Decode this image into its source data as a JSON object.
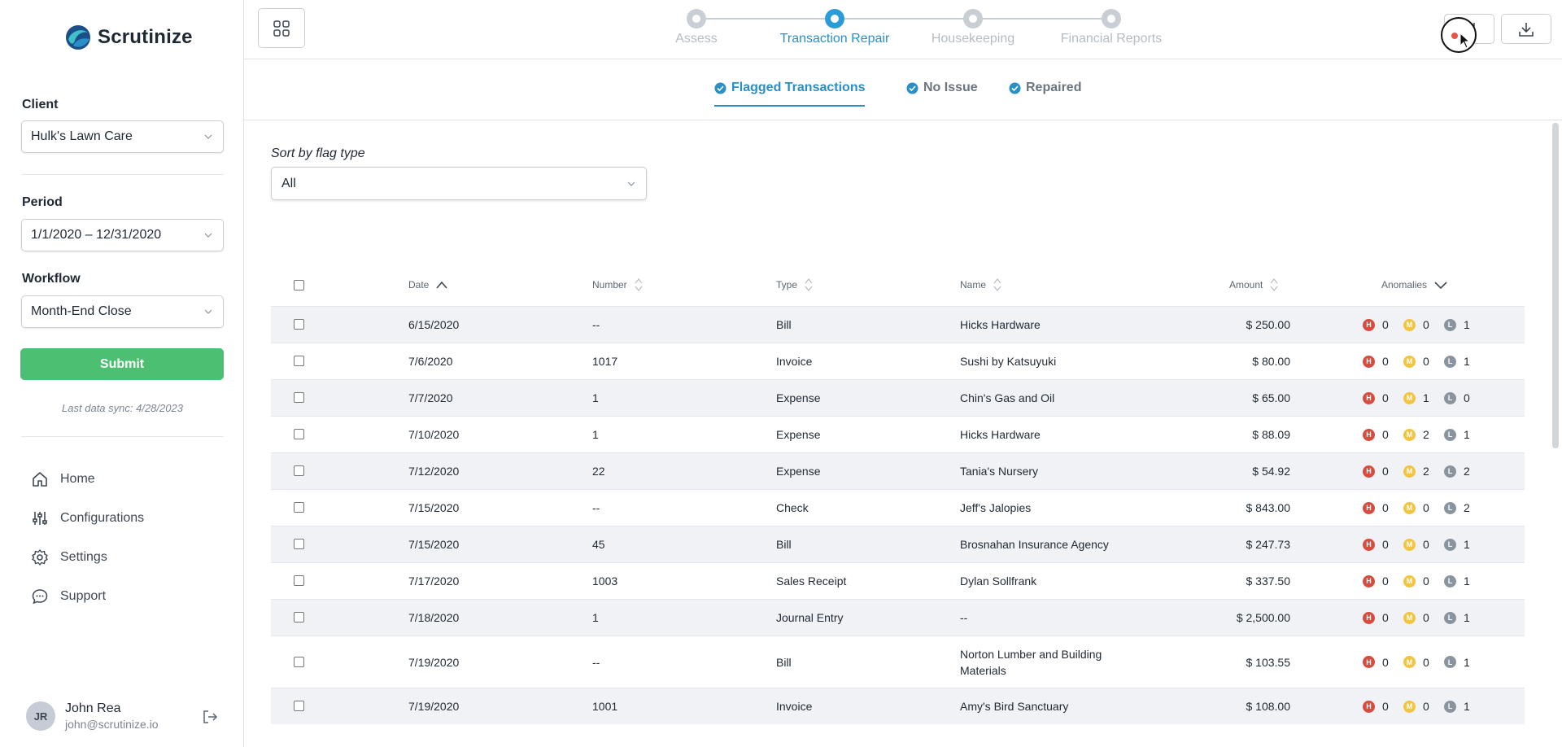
{
  "brand": {
    "name": "Scrutinize"
  },
  "sidebar": {
    "client_label": "Client",
    "client_value": "Hulk's Lawn Care",
    "period_label": "Period",
    "period_value": "1/1/2020 – 12/31/2020",
    "workflow_label": "Workflow",
    "workflow_value": "Month-End Close",
    "submit_label": "Submit",
    "sync_text": "Last data sync: 4/28/2023",
    "nav": [
      {
        "label": "Home",
        "icon": "home-icon"
      },
      {
        "label": "Configurations",
        "icon": "sliders-icon"
      },
      {
        "label": "Settings",
        "icon": "gear-icon"
      },
      {
        "label": "Support",
        "icon": "chat-icon"
      }
    ],
    "user": {
      "initials": "JR",
      "name": "John Rea",
      "email": "john@scrutinize.io"
    }
  },
  "stepper": {
    "steps": [
      {
        "label": "Assess",
        "active": false
      },
      {
        "label": "Transaction Repair",
        "active": true
      },
      {
        "label": "Housekeeping",
        "active": false
      },
      {
        "label": "Financial Reports",
        "active": false
      }
    ]
  },
  "subtabs": [
    {
      "label": "Flagged Transactions",
      "active": true
    },
    {
      "label": "No Issue",
      "active": false
    },
    {
      "label": "Repaired",
      "active": false
    }
  ],
  "filter": {
    "label": "Sort by flag type",
    "value": "All"
  },
  "table": {
    "columns": {
      "date": "Date",
      "number": "Number",
      "type": "Type",
      "name": "Name",
      "amount": "Amount",
      "anomalies": "Anomalies"
    },
    "badges": {
      "high": "H",
      "medium": "M",
      "low": "L"
    },
    "rows": [
      {
        "date": "6/15/2020",
        "number": "--",
        "type": "Bill",
        "name": "Hicks Hardware",
        "amount": "$ 250.00",
        "h": "0",
        "m": "0",
        "l": "1"
      },
      {
        "date": "7/6/2020",
        "number": "1017",
        "type": "Invoice",
        "name": "Sushi by Katsuyuki",
        "amount": "$ 80.00",
        "h": "0",
        "m": "0",
        "l": "1"
      },
      {
        "date": "7/7/2020",
        "number": "1",
        "type": "Expense",
        "name": "Chin's Gas and Oil",
        "amount": "$ 65.00",
        "h": "0",
        "m": "1",
        "l": "0"
      },
      {
        "date": "7/10/2020",
        "number": "1",
        "type": "Expense",
        "name": "Hicks Hardware",
        "amount": "$ 88.09",
        "h": "0",
        "m": "2",
        "l": "1"
      },
      {
        "date": "7/12/2020",
        "number": "22",
        "type": "Expense",
        "name": "Tania's Nursery",
        "amount": "$ 54.92",
        "h": "0",
        "m": "2",
        "l": "2"
      },
      {
        "date": "7/15/2020",
        "number": "--",
        "type": "Check",
        "name": "Jeff's Jalopies",
        "amount": "$ 843.00",
        "h": "0",
        "m": "0",
        "l": "2"
      },
      {
        "date": "7/15/2020",
        "number": "45",
        "type": "Bill",
        "name": "Brosnahan Insurance Agency",
        "amount": "$ 247.73",
        "h": "0",
        "m": "0",
        "l": "1"
      },
      {
        "date": "7/17/2020",
        "number": "1003",
        "type": "Sales Receipt",
        "name": "Dylan Sollfrank",
        "amount": "$ 337.50",
        "h": "0",
        "m": "0",
        "l": "1"
      },
      {
        "date": "7/18/2020",
        "number": "1",
        "type": "Journal Entry",
        "name": "--",
        "amount": "$ 2,500.00",
        "h": "0",
        "m": "0",
        "l": "1"
      },
      {
        "date": "7/19/2020",
        "number": "--",
        "type": "Bill",
        "name": "Norton Lumber and Building Materials",
        "amount": "$ 103.55",
        "h": "0",
        "m": "0",
        "l": "1"
      },
      {
        "date": "7/19/2020",
        "number": "1001",
        "type": "Invoice",
        "name": "Amy's Bird Sanctuary",
        "amount": "$ 108.00",
        "h": "0",
        "m": "0",
        "l": "1"
      }
    ]
  },
  "colors": {
    "accent": "#2a8fc7",
    "submit": "#4cbf72",
    "high": "#d94b3e",
    "medium": "#f3c440",
    "low": "#8a949e"
  }
}
